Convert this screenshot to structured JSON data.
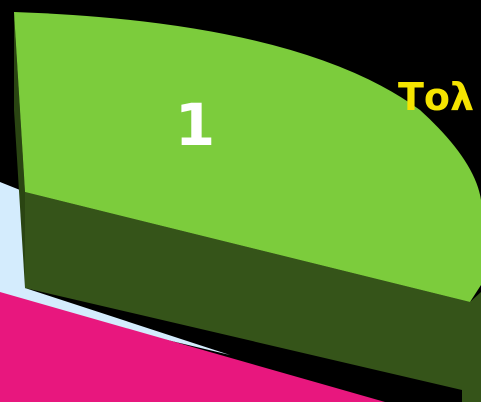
{
  "slice_label": "1",
  "side_text": "Τολ"
}
